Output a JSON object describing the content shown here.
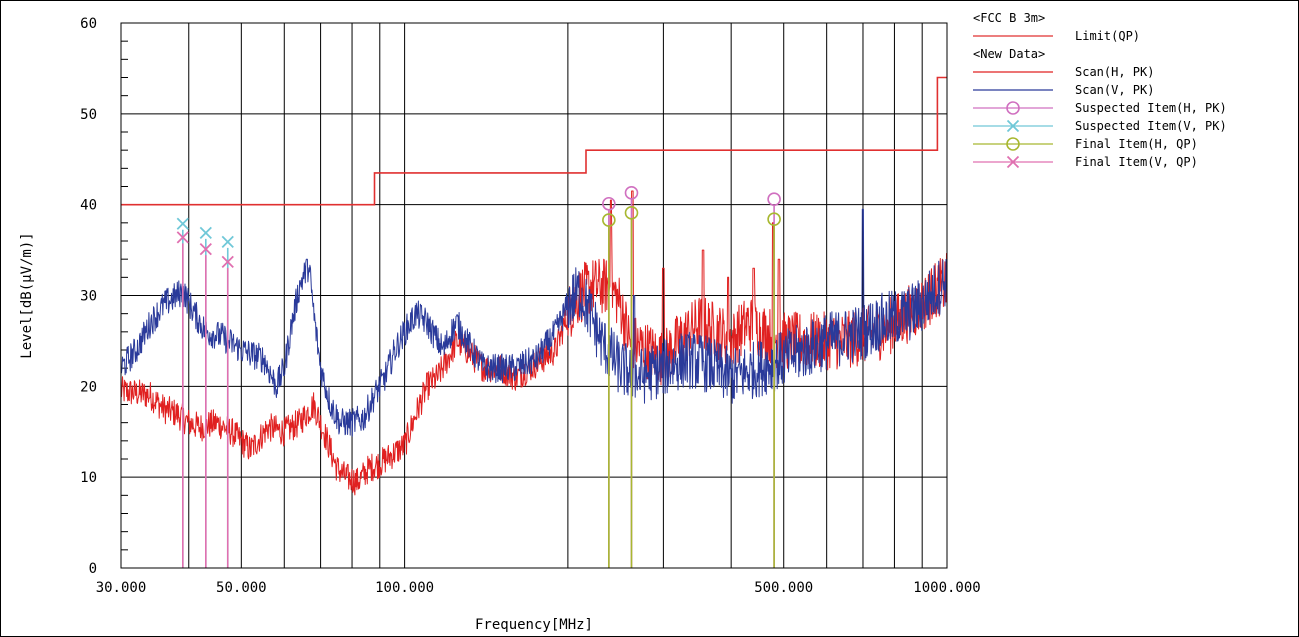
{
  "chart_data": {
    "type": "line",
    "xlabel": "Frequency[MHz]",
    "ylabel": "Level[dB(µV/m)]",
    "x_scale": "log",
    "xlim": [
      30,
      1000
    ],
    "ylim": [
      0,
      60
    ],
    "grid": true,
    "x_tick_labels": [
      {
        "value": 30,
        "label": "30.000"
      },
      {
        "value": 50,
        "label": "50.000"
      },
      {
        "value": 100,
        "label": "100.000"
      },
      {
        "value": 500,
        "label": "500.000"
      },
      {
        "value": 1000,
        "label": "1000.000"
      }
    ],
    "x_grid_values": [
      40,
      50,
      60,
      70,
      80,
      90,
      100,
      200,
      300,
      400,
      500,
      600,
      700,
      800,
      900
    ],
    "y_ticks": [
      0,
      10,
      20,
      30,
      40,
      50,
      60
    ],
    "legend_position": "right",
    "legend": {
      "groups": [
        {
          "header": "<FCC B 3m>",
          "entries": [
            {
              "label": "Limit(QP)",
              "color": "#e03030",
              "marker": "none"
            }
          ]
        },
        {
          "header": "<New Data>",
          "entries": [
            {
              "label": "Scan(H, PK)",
              "color": "#e02020",
              "marker": "none"
            },
            {
              "label": "Scan(V, PK)",
              "color": "#2a3a9a",
              "marker": "none"
            },
            {
              "label": "Suspected Item(H, PK)",
              "color": "#d070c0",
              "marker": "circle"
            },
            {
              "label": "Suspected Item(V, PK)",
              "color": "#70c8d8",
              "marker": "x"
            },
            {
              "label": "Final Item(H, QP)",
              "color": "#a8b830",
              "marker": "circle"
            },
            {
              "label": "Final Item(V, QP)",
              "color": "#e070b0",
              "marker": "x"
            }
          ]
        }
      ]
    },
    "series": [
      {
        "name": "Limit(QP)",
        "color": "#e03030",
        "kind": "step",
        "points": [
          [
            30,
            40
          ],
          [
            88,
            40
          ],
          [
            88,
            43.5
          ],
          [
            216,
            43.5
          ],
          [
            216,
            46
          ],
          [
            960,
            46
          ],
          [
            960,
            54
          ],
          [
            1000,
            54
          ]
        ]
      },
      {
        "name": "Scan(H, PK)",
        "color": "#e02020",
        "kind": "noisy",
        "points": [
          [
            30,
            19.5
          ],
          [
            34,
            19
          ],
          [
            36,
            17.5
          ],
          [
            38,
            17
          ],
          [
            40,
            16
          ],
          [
            42,
            15.5
          ],
          [
            45,
            16
          ],
          [
            48,
            15
          ],
          [
            52,
            13
          ],
          [
            56,
            15.5
          ],
          [
            60,
            15
          ],
          [
            64,
            16
          ],
          [
            68,
            18
          ],
          [
            72,
            14
          ],
          [
            75,
            11
          ],
          [
            78,
            10
          ],
          [
            82,
            9.5
          ],
          [
            86,
            11
          ],
          [
            90,
            11.5
          ],
          [
            95,
            12.5
          ],
          [
            100,
            13.5
          ],
          [
            105,
            17
          ],
          [
            110,
            20
          ],
          [
            115,
            21
          ],
          [
            120,
            23
          ],
          [
            125,
            25
          ],
          [
            130,
            24
          ],
          [
            140,
            22
          ],
          [
            150,
            22
          ],
          [
            160,
            21
          ],
          [
            170,
            22
          ],
          [
            180,
            23
          ],
          [
            190,
            24
          ],
          [
            200,
            28
          ],
          [
            210,
            30
          ],
          [
            220,
            31
          ],
          [
            240,
            31
          ],
          [
            250,
            29
          ],
          [
            260,
            25
          ],
          [
            280,
            24
          ],
          [
            300,
            23
          ],
          [
            320,
            25
          ],
          [
            350,
            27
          ],
          [
            380,
            26
          ],
          [
            400,
            25
          ],
          [
            430,
            27
          ],
          [
            460,
            26
          ],
          [
            490,
            25
          ],
          [
            520,
            25
          ],
          [
            560,
            25
          ],
          [
            600,
            25
          ],
          [
            650,
            25
          ],
          [
            700,
            25.5
          ],
          [
            750,
            26
          ],
          [
            800,
            27
          ],
          [
            850,
            28
          ],
          [
            900,
            29
          ],
          [
            950,
            30.5
          ],
          [
            1000,
            31.5
          ]
        ],
        "spikes": [
          [
            240,
            40.5
          ],
          [
            263,
            41.5
          ],
          [
            300,
            33
          ],
          [
            355,
            35
          ],
          [
            395,
            32
          ],
          [
            440,
            33
          ],
          [
            478,
            38
          ],
          [
            490,
            34
          ]
        ]
      },
      {
        "name": "Scan(V, PK)",
        "color": "#2a3a9a",
        "kind": "noisy",
        "points": [
          [
            30,
            22
          ],
          [
            32,
            24
          ],
          [
            34,
            27
          ],
          [
            36,
            29
          ],
          [
            38,
            30
          ],
          [
            39,
            30.5
          ],
          [
            41,
            28
          ],
          [
            43,
            26
          ],
          [
            46,
            25.5
          ],
          [
            50,
            24
          ],
          [
            55,
            23
          ],
          [
            58,
            20
          ],
          [
            60,
            22
          ],
          [
            62,
            27
          ],
          [
            64,
            31
          ],
          [
            66,
            33
          ],
          [
            67,
            32
          ],
          [
            68,
            28
          ],
          [
            70,
            22
          ],
          [
            73,
            18
          ],
          [
            76,
            16
          ],
          [
            80,
            16
          ],
          [
            84,
            16.5
          ],
          [
            88,
            19
          ],
          [
            92,
            21
          ],
          [
            96,
            24
          ],
          [
            100,
            26
          ],
          [
            105,
            28
          ],
          [
            110,
            27
          ],
          [
            115,
            25
          ],
          [
            118,
            24
          ],
          [
            122,
            26
          ],
          [
            125,
            27
          ],
          [
            130,
            25
          ],
          [
            140,
            22
          ],
          [
            150,
            22
          ],
          [
            160,
            22
          ],
          [
            175,
            23
          ],
          [
            190,
            26
          ],
          [
            200,
            29
          ],
          [
            210,
            30.5
          ],
          [
            220,
            28
          ],
          [
            230,
            25
          ],
          [
            250,
            22
          ],
          [
            270,
            21
          ],
          [
            300,
            22
          ],
          [
            330,
            23
          ],
          [
            360,
            22.5
          ],
          [
            400,
            21
          ],
          [
            450,
            22
          ],
          [
            500,
            23
          ],
          [
            550,
            24
          ],
          [
            600,
            25
          ],
          [
            650,
            25.5
          ],
          [
            700,
            26
          ],
          [
            750,
            27
          ],
          [
            800,
            27.5
          ],
          [
            850,
            28
          ],
          [
            900,
            29
          ],
          [
            950,
            30.5
          ],
          [
            1000,
            32
          ]
        ],
        "spikes": [
          [
            39,
            31
          ],
          [
            66,
            34
          ],
          [
            700,
            39.5
          ],
          [
            265,
            30
          ]
        ]
      },
      {
        "name": "Suspected Item(H, PK)",
        "color": "#d070c0",
        "kind": "marker",
        "marker": "circle",
        "points": [
          [
            238,
            40.1
          ],
          [
            262,
            41.3
          ],
          [
            480,
            40.6
          ]
        ]
      },
      {
        "name": "Suspected Item(V, PK)",
        "color": "#70c8d8",
        "kind": "marker",
        "marker": "x",
        "points": [
          [
            39.0,
            37.9
          ],
          [
            43.0,
            36.9
          ],
          [
            47.2,
            35.9
          ]
        ]
      },
      {
        "name": "Final Item(H, QP)",
        "color": "#a8b830",
        "kind": "marker",
        "marker": "circle",
        "points": [
          [
            238,
            38.3
          ],
          [
            262,
            39.1
          ],
          [
            480,
            38.4
          ]
        ]
      },
      {
        "name": "Final Item(V, QP)",
        "color": "#e070b0",
        "kind": "marker",
        "marker": "x",
        "points": [
          [
            39.0,
            36.4
          ],
          [
            43.0,
            35.1
          ],
          [
            47.2,
            33.7
          ]
        ]
      }
    ]
  }
}
